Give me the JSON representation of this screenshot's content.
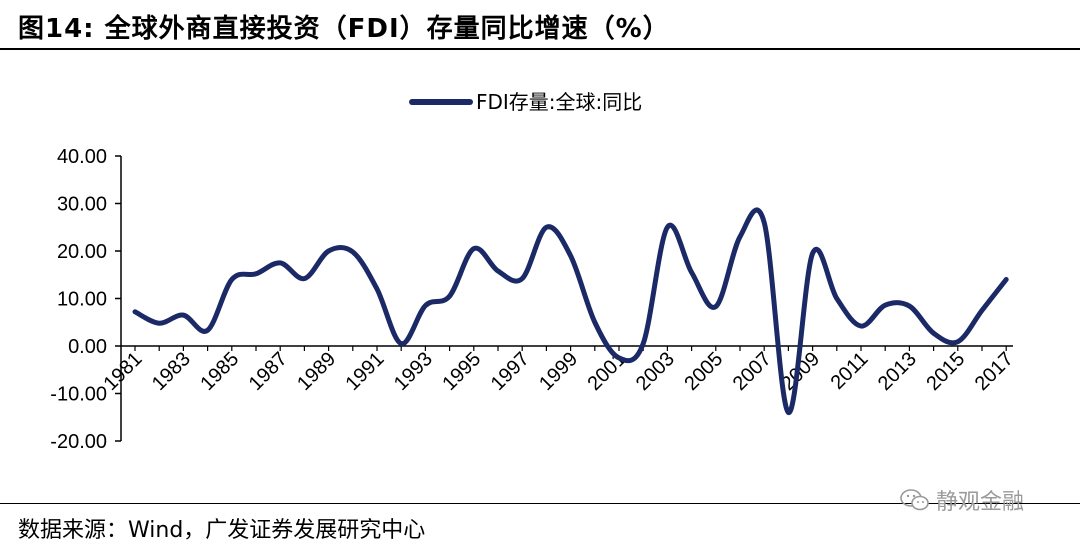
{
  "figure": {
    "title": "图14:  全球外商直接投资（FDI）存量同比增速（%）",
    "source": "数据来源：Wind，广发证券发展研究中心",
    "watermark": "静观金融",
    "watermark_icon": "wechat-icon"
  },
  "chart_data": {
    "type": "line",
    "title": "",
    "xlabel": "",
    "ylabel": "",
    "legend_position": "top-center",
    "grid": false,
    "line_color": "#1b2a66",
    "ylim": [
      -20,
      40
    ],
    "y_ticks": [
      "40.00",
      "30.00",
      "20.00",
      "10.00",
      "0.00",
      "-10.00",
      "-20.00"
    ],
    "y_tick_values": [
      40,
      30,
      20,
      10,
      0,
      -10,
      -20
    ],
    "x_tick_labels": [
      "1981",
      "1983",
      "1985",
      "1987",
      "1989",
      "1991",
      "1993",
      "1995",
      "1997",
      "1999",
      "2001",
      "2003",
      "2005",
      "2007",
      "2009",
      "2011",
      "2013",
      "2015",
      "2017"
    ],
    "x": [
      1981,
      1982,
      1983,
      1984,
      1985,
      1986,
      1987,
      1988,
      1989,
      1990,
      1991,
      1992,
      1993,
      1994,
      1995,
      1996,
      1997,
      1998,
      1999,
      2000,
      2001,
      2002,
      2003,
      2004,
      2005,
      2006,
      2007,
      2008,
      2009,
      2010,
      2011,
      2012,
      2013,
      2014,
      2015,
      2016,
      2017
    ],
    "series": [
      {
        "name": "FDI存量:全球:同比",
        "values": [
          7.2,
          4.8,
          6.5,
          3.3,
          14.0,
          15.2,
          17.5,
          14.2,
          20.0,
          19.8,
          12.0,
          0.5,
          8.5,
          10.5,
          20.5,
          15.8,
          14.2,
          25.0,
          19.0,
          5.0,
          -2.5,
          0.5,
          25.0,
          15.5,
          8.3,
          23.0,
          26.0,
          -14.0,
          19.5,
          10.0,
          4.2,
          8.6,
          8.4,
          2.7,
          0.9,
          7.5,
          14.0
        ]
      }
    ]
  }
}
